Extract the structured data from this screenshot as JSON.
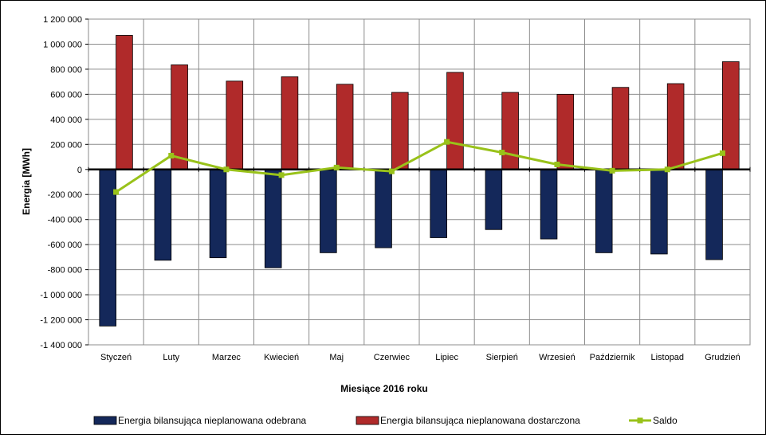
{
  "chart_data": {
    "type": "bar",
    "xlabel": "Miesiące 2016  roku",
    "ylabel": "Energia  [MWh]",
    "ylim": [
      -1400000,
      1200000
    ],
    "ytick_step": 200000,
    "yticks": [
      "-1 400 000",
      "-1 200 000",
      "-1 000 000",
      "-800 000",
      "-600 000",
      "-400 000",
      "-200 000",
      "0",
      "200 000",
      "400 000",
      "600 000",
      "800 000",
      "1 000 000",
      "1 200 000"
    ],
    "grid": true,
    "legend_position": "bottom",
    "categories": [
      "Styczeń",
      "Luty",
      "Marzec",
      "Kwiecień",
      "Maj",
      "Czerwiec",
      "Lipiec",
      "Sierpień",
      "Wrzesień",
      "Październik",
      "Listopad",
      "Grudzień"
    ],
    "series": [
      {
        "name": "Energia bilansująca nieplanowana odebrana",
        "kind": "bar",
        "color": "#14285a",
        "values": [
          -1250000,
          -725000,
          -705000,
          -785000,
          -665000,
          -625000,
          -545000,
          -480000,
          -555000,
          -665000,
          -675000,
          -720000
        ]
      },
      {
        "name": "Energia bilansująca nieplanowana dostarczona",
        "kind": "bar",
        "color": "#b02a2a",
        "values": [
          1070000,
          835000,
          705000,
          740000,
          680000,
          615000,
          775000,
          615000,
          600000,
          655000,
          685000,
          860000
        ]
      },
      {
        "name": "Saldo",
        "kind": "line",
        "color": "#99c21a",
        "values": [
          -180000,
          110000,
          0,
          -45000,
          15000,
          -15000,
          220000,
          135000,
          40000,
          -10000,
          0,
          130000
        ]
      }
    ]
  }
}
